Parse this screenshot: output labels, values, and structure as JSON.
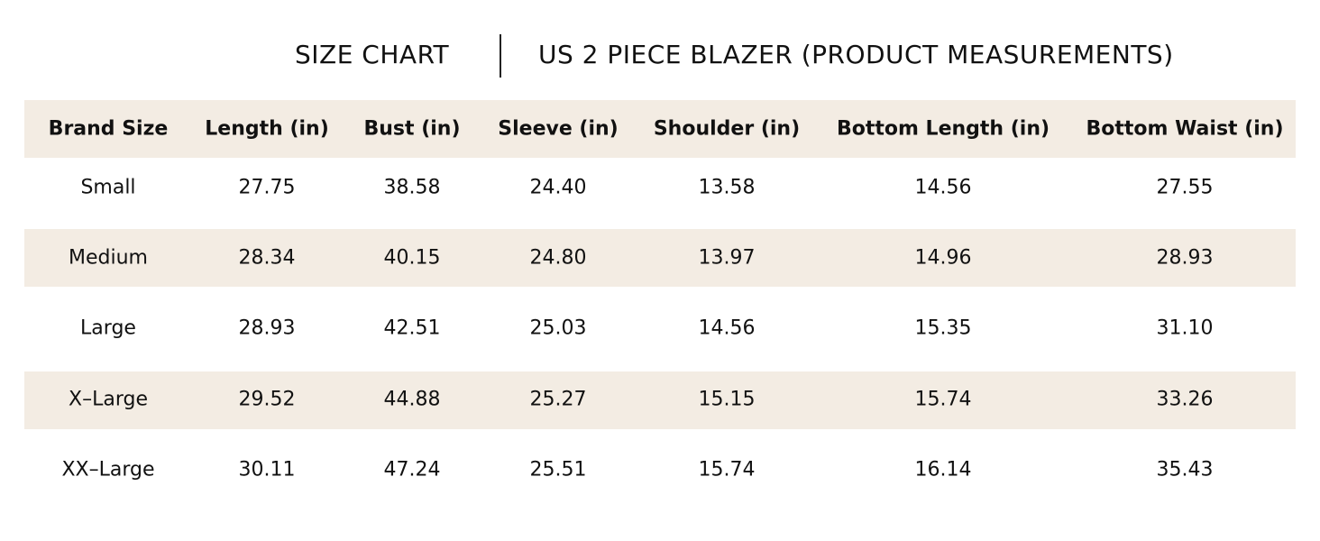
{
  "header": {
    "title": "SIZE CHART",
    "subtitle": "US 2 PIECE BLAZER (PRODUCT MEASUREMENTS)"
  },
  "table": {
    "columns": [
      "Brand Size",
      "Length (in)",
      "Bust (in)",
      "Sleeve (in)",
      "Shoulder (in)",
      "Bottom Length (in)",
      "Bottom Waist (in)"
    ],
    "rows": [
      [
        "Small",
        "27.75",
        "38.58",
        "24.40",
        "13.58",
        "14.56",
        "27.55"
      ],
      [
        "Medium",
        "28.34",
        "40.15",
        "24.80",
        "13.97",
        "14.96",
        "28.93"
      ],
      [
        "Large",
        "28.93",
        "42.51",
        "25.03",
        "14.56",
        "15.35",
        "31.10"
      ],
      [
        "X–Large",
        "29.52",
        "44.88",
        "25.27",
        "15.15",
        "15.74",
        "33.26"
      ],
      [
        "XX–Large",
        "30.11",
        "47.24",
        "25.51",
        "15.74",
        "16.14",
        "35.43"
      ]
    ]
  }
}
